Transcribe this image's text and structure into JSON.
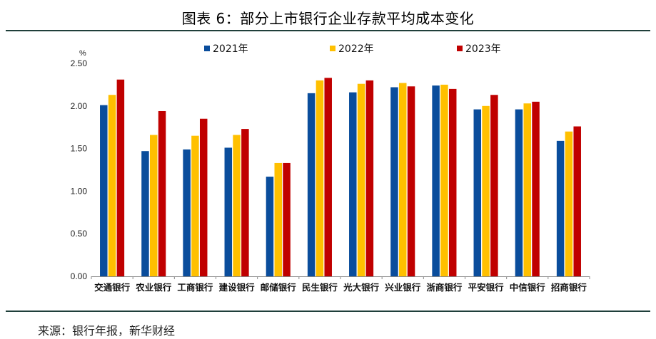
{
  "title": "图表 6：部分上市银行企业存款平均成本变化",
  "source": "来源：银行年报，新华财经",
  "chart_data": {
    "type": "bar",
    "unit": "%",
    "categories": [
      "交通银行",
      "农业银行",
      "工商银行",
      "建设银行",
      "邮储银行",
      "民生银行",
      "光大银行",
      "兴业银行",
      "浙商银行",
      "平安银行",
      "中信银行",
      "招商银行"
    ],
    "series": [
      {
        "name": "2021年",
        "color": "#0a4d9c",
        "values": [
          2.01,
          1.47,
          1.49,
          1.51,
          1.17,
          2.15,
          2.16,
          2.22,
          2.24,
          1.96,
          1.96,
          1.59
        ]
      },
      {
        "name": "2022年",
        "color": "#ffc000",
        "values": [
          2.13,
          1.66,
          1.65,
          1.66,
          1.33,
          2.3,
          2.26,
          2.27,
          2.25,
          2.0,
          2.03,
          1.7
        ]
      },
      {
        "name": "2023年",
        "color": "#c00000",
        "values": [
          2.31,
          1.94,
          1.85,
          1.73,
          1.33,
          2.33,
          2.3,
          2.23,
          2.2,
          2.13,
          2.05,
          1.76
        ]
      }
    ],
    "ylim": [
      0,
      2.5
    ],
    "yticks": [
      "0.00",
      "0.50",
      "1.00",
      "1.50",
      "2.00",
      "2.50"
    ],
    "legend_position": "top",
    "grid": false
  }
}
